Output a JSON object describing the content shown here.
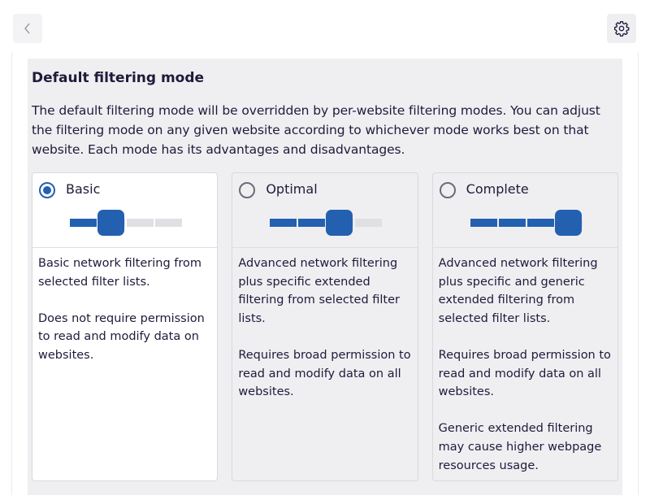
{
  "header": {
    "back_icon": "chevron-left-icon",
    "settings_icon": "gear-icon"
  },
  "section": {
    "title": "Default filtering mode",
    "description": "The default filtering mode will be overridden by per-website filtering modes. You can adjust the filtering mode on any given website according to whichever mode works best on that website. Each mode has its advantages and disadvantages."
  },
  "modes": [
    {
      "label": "Basic",
      "selected": true,
      "level": 1,
      "levels": 4,
      "paragraphs": [
        "Basic network filtering from selected filter lists.",
        "Does not require permission to read and modify data on websites."
      ]
    },
    {
      "label": "Optimal",
      "selected": false,
      "level": 2,
      "levels": 4,
      "paragraphs": [
        "Advanced network filtering plus specific extended filtering from selected filter lists.",
        "Requires broad permission to read and modify data on all websites."
      ]
    },
    {
      "label": "Complete",
      "selected": false,
      "level": 3,
      "levels": 4,
      "paragraphs": [
        "Advanced network filtering plus specific and generic extended filtering from selected filter lists.",
        "Requires broad permission to read and modify data on all websites.",
        "Generic extended filtering may cause higher webpage resources usage."
      ]
    }
  ],
  "colors": {
    "accent": "#2460b0",
    "panel": "#efeff2"
  }
}
